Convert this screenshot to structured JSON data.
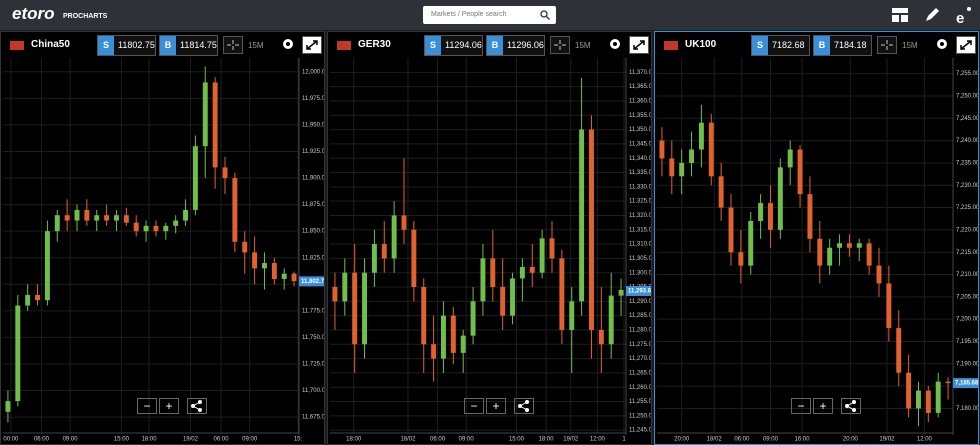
{
  "header": {
    "logo": "etoro",
    "logo_sub": "PROCHARTS",
    "search_placeholder": "Markets / People search"
  },
  "panels": [
    {
      "type": "candlestick",
      "name": "China50",
      "sell_label": "S",
      "sell": 11802.75,
      "buy_label": "B",
      "buy": 11814.75,
      "timeframe": "15M",
      "ylim": [
        11660,
        12013
      ],
      "xlim": [
        0,
        30
      ],
      "yticks": [
        {
          "value": 11675,
          "label": "11,675.00"
        },
        {
          "value": 11700,
          "label": "11,700.00"
        },
        {
          "value": 11725,
          "label": "11,725.00"
        },
        {
          "value": 11750,
          "label": "11,750.00"
        },
        {
          "value": 11775,
          "label": "11,775.00"
        },
        {
          "value": 11800,
          "label": "11,800.00"
        },
        {
          "value": 11825,
          "label": "11,825.00"
        },
        {
          "value": 11850,
          "label": "11,850.00"
        },
        {
          "value": 11875,
          "label": "11,875.00"
        },
        {
          "value": 11900,
          "label": "11,900.00"
        },
        {
          "value": 11925,
          "label": "11,925.00"
        },
        {
          "value": 11950,
          "label": "11,950.00"
        },
        {
          "value": 11975,
          "label": "11,975.00"
        },
        {
          "value": 12000,
          "label": "12,000.00"
        }
      ],
      "xticks": [
        {
          "value": 0.8,
          "label": "00:00"
        },
        {
          "value": 3.9,
          "label": "06:00"
        },
        {
          "value": 6.8,
          "label": "09:00"
        },
        {
          "value": 12,
          "label": "15:00"
        },
        {
          "value": 14.8,
          "label": "18:00"
        },
        {
          "value": 19,
          "label": "19/02"
        },
        {
          "value": 22.1,
          "label": "06:00"
        },
        {
          "value": 25,
          "label": "09:00"
        },
        {
          "value": 29.9,
          "label": "15:"
        }
      ],
      "price": {
        "value": 11802.75,
        "label": "11,802.75"
      },
      "candles": [
        [
          11680,
          11700,
          11670,
          11690
        ],
        [
          11690,
          11790,
          11685,
          11780
        ],
        [
          11780,
          11800,
          11775,
          11790
        ],
        [
          11790,
          11800,
          11780,
          11785
        ],
        [
          11785,
          11860,
          11780,
          11850
        ],
        [
          11850,
          11870,
          11840,
          11865
        ],
        [
          11865,
          11880,
          11850,
          11860
        ],
        [
          11860,
          11875,
          11850,
          11870
        ],
        [
          11870,
          11880,
          11855,
          11860
        ],
        [
          11860,
          11870,
          11850,
          11865
        ],
        [
          11865,
          11875,
          11855,
          11860
        ],
        [
          11860,
          11870,
          11850,
          11865
        ],
        [
          11865,
          11872,
          11855,
          11858
        ],
        [
          11858,
          11865,
          11845,
          11850
        ],
        [
          11850,
          11860,
          11840,
          11855
        ],
        [
          11855,
          11860,
          11845,
          11850
        ],
        [
          11850,
          11858,
          11842,
          11855
        ],
        [
          11855,
          11865,
          11848,
          11860
        ],
        [
          11860,
          11880,
          11855,
          11870
        ],
        [
          11870,
          11940,
          11865,
          11930
        ],
        [
          11930,
          12005,
          11900,
          11990
        ],
        [
          11990,
          11995,
          11890,
          11910
        ],
        [
          11910,
          11920,
          11885,
          11900
        ],
        [
          11900,
          11905,
          11830,
          11840
        ],
        [
          11840,
          11850,
          11810,
          11830
        ],
        [
          11830,
          11845,
          11800,
          11815
        ],
        [
          11815,
          11830,
          11795,
          11820
        ],
        [
          11820,
          11825,
          11800,
          11805
        ],
        [
          11805,
          11815,
          11795,
          11810
        ],
        [
          11810,
          11812,
          11798,
          11803
        ]
      ]
    },
    {
      "type": "candlestick",
      "name": "GER30",
      "sell_label": "S",
      "sell": 11294.06,
      "buy_label": "B",
      "buy": 11296.06,
      "timeframe": "15M",
      "ylim": [
        11244,
        11375
      ],
      "xlim": [
        0,
        30
      ],
      "yticks": [
        {
          "value": 11245,
          "label": "11,245.00"
        },
        {
          "value": 11250,
          "label": "11,250.00"
        },
        {
          "value": 11255,
          "label": "11,255.00"
        },
        {
          "value": 11260,
          "label": "11,260.00"
        },
        {
          "value": 11265,
          "label": "11,265.00"
        },
        {
          "value": 11270,
          "label": "11,270.00"
        },
        {
          "value": 11275,
          "label": "11,275.00"
        },
        {
          "value": 11280,
          "label": "11,280.00"
        },
        {
          "value": 11285,
          "label": "11,285.00"
        },
        {
          "value": 11290,
          "label": "11,290.00"
        },
        {
          "value": 11295,
          "label": "11,295.00"
        },
        {
          "value": 11300,
          "label": "11,300.00"
        },
        {
          "value": 11305,
          "label": "11,305.00"
        },
        {
          "value": 11310,
          "label": "11,310.00"
        },
        {
          "value": 11315,
          "label": "11,315.00"
        },
        {
          "value": 11320,
          "label": "11,320.00"
        },
        {
          "value": 11325,
          "label": "11,325.00"
        },
        {
          "value": 11330,
          "label": "11,330.00"
        },
        {
          "value": 11335,
          "label": "11,335.00"
        },
        {
          "value": 11340,
          "label": "11,340.00"
        },
        {
          "value": 11345,
          "label": "11,345.00"
        },
        {
          "value": 11350,
          "label": "11,350.00"
        },
        {
          "value": 11355,
          "label": "11,355.00"
        },
        {
          "value": 11360,
          "label": "11,360.00"
        },
        {
          "value": 11365,
          "label": "11,365.00"
        },
        {
          "value": 11370,
          "label": "11,370.00"
        }
      ],
      "xticks": [
        {
          "value": 2.4,
          "label": "18:00"
        },
        {
          "value": 7.9,
          "label": "18/02"
        },
        {
          "value": 10.9,
          "label": "06:00"
        },
        {
          "value": 13.8,
          "label": "09:00"
        },
        {
          "value": 18.9,
          "label": "15:00"
        },
        {
          "value": 21.9,
          "label": "18:00"
        },
        {
          "value": 24.4,
          "label": "19/02"
        },
        {
          "value": 27.1,
          "label": "12:00"
        },
        {
          "value": 29.8,
          "label": "1"
        }
      ],
      "price": {
        "value": 11293.6,
        "label": "11,293.60"
      },
      "candles": [
        [
          11295,
          11300,
          11280,
          11290
        ],
        [
          11290,
          11305,
          11285,
          11300
        ],
        [
          11300,
          11310,
          11265,
          11275
        ],
        [
          11275,
          11305,
          11270,
          11300
        ],
        [
          11300,
          11315,
          11295,
          11310
        ],
        [
          11310,
          11318,
          11300,
          11305
        ],
        [
          11305,
          11325,
          11300,
          11320
        ],
        [
          11320,
          11340,
          11310,
          11315
        ],
        [
          11315,
          11318,
          11290,
          11295
        ],
        [
          11295,
          11298,
          11265,
          11275
        ],
        [
          11275,
          11285,
          11262,
          11270
        ],
        [
          11270,
          11290,
          11265,
          11285
        ],
        [
          11285,
          11288,
          11268,
          11272
        ],
        [
          11272,
          11280,
          11265,
          11278
        ],
        [
          11278,
          11295,
          11275,
          11290
        ],
        [
          11290,
          11310,
          11285,
          11305
        ],
        [
          11305,
          11315,
          11290,
          11295
        ],
        [
          11295,
          11305,
          11280,
          11285
        ],
        [
          11285,
          11300,
          11282,
          11298
        ],
        [
          11298,
          11305,
          11290,
          11302
        ],
        [
          11302,
          11310,
          11295,
          11300
        ],
        [
          11300,
          11315,
          11298,
          11312
        ],
        [
          11312,
          11318,
          11300,
          11305
        ],
        [
          11305,
          11308,
          11275,
          11280
        ],
        [
          11280,
          11295,
          11265,
          11290
        ],
        [
          11290,
          11368,
          11285,
          11350
        ],
        [
          11350,
          11355,
          11270,
          11280
        ],
        [
          11280,
          11295,
          11265,
          11275
        ],
        [
          11275,
          11300,
          11270,
          11292
        ],
        [
          11292,
          11298,
          11285,
          11294
        ]
      ]
    },
    {
      "type": "candlestick",
      "name": "UK100",
      "sell_label": "S",
      "sell": 7182.68,
      "buy_label": "B",
      "buy": 7184.18,
      "timeframe": "15M",
      "ylim": [
        7174.5,
        7258.5
      ],
      "xlim": [
        0,
        30
      ],
      "yticks": [
        {
          "value": 7180,
          "label": "7,180.00"
        },
        {
          "value": 7185,
          "label": "7,185.00"
        },
        {
          "value": 7190,
          "label": "7,190.00"
        },
        {
          "value": 7195,
          "label": "7,195.00"
        },
        {
          "value": 7200,
          "label": "7,200.00"
        },
        {
          "value": 7205,
          "label": "7,205.00"
        },
        {
          "value": 7210,
          "label": "7,210.00"
        },
        {
          "value": 7215,
          "label": "7,215.00"
        },
        {
          "value": 7220,
          "label": "7,220.00"
        },
        {
          "value": 7225,
          "label": "7,225.00"
        },
        {
          "value": 7230,
          "label": "7,230.00"
        },
        {
          "value": 7235,
          "label": "7,235.00"
        },
        {
          "value": 7240,
          "label": "7,240.00"
        },
        {
          "value": 7245,
          "label": "7,245.00"
        },
        {
          "value": 7250,
          "label": "7,250.00"
        },
        {
          "value": 7255,
          "label": "7,255.00"
        }
      ],
      "xticks": [
        {
          "value": 2.5,
          "label": "20:00"
        },
        {
          "value": 5.8,
          "label": "18/02"
        },
        {
          "value": 8.6,
          "label": "06:00"
        },
        {
          "value": 11.5,
          "label": "09:00"
        },
        {
          "value": 14.7,
          "label": "16:00"
        },
        {
          "value": 19.6,
          "label": "20:00"
        },
        {
          "value": 23.3,
          "label": "19/02"
        },
        {
          "value": 27.1,
          "label": "12:00"
        }
      ],
      "price": {
        "value": 7185.68,
        "label": "7,185.68"
      },
      "candles": [
        [
          7240,
          7243,
          7232,
          7236
        ],
        [
          7236,
          7240,
          7228,
          7232
        ],
        [
          7232,
          7238,
          7228,
          7235
        ],
        [
          7235,
          7242,
          7232,
          7238
        ],
        [
          7238,
          7248,
          7234,
          7244
        ],
        [
          7244,
          7246,
          7230,
          7232
        ],
        [
          7232,
          7235,
          7222,
          7225
        ],
        [
          7225,
          7228,
          7212,
          7215
        ],
        [
          7215,
          7220,
          7208,
          7212
        ],
        [
          7212,
          7224,
          7210,
          7222
        ],
        [
          7222,
          7228,
          7218,
          7226
        ],
        [
          7226,
          7230,
          7216,
          7220
        ],
        [
          7220,
          7236,
          7218,
          7234
        ],
        [
          7234,
          7240,
          7230,
          7238
        ],
        [
          7238,
          7239,
          7225,
          7228
        ],
        [
          7228,
          7232,
          7215,
          7218
        ],
        [
          7218,
          7222,
          7208,
          7212
        ],
        [
          7212,
          7218,
          7210,
          7216
        ],
        [
          7216,
          7219,
          7212,
          7217
        ],
        [
          7217,
          7219,
          7214,
          7216
        ],
        [
          7216,
          7218,
          7213,
          7217
        ],
        [
          7217,
          7218,
          7210,
          7212
        ],
        [
          7212,
          7216,
          7205,
          7208
        ],
        [
          7208,
          7212,
          7195,
          7198
        ],
        [
          7198,
          7202,
          7185,
          7188
        ],
        [
          7188,
          7192,
          7178,
          7180
        ],
        [
          7180,
          7186,
          7176,
          7184
        ],
        [
          7184,
          7185,
          7177,
          7179
        ],
        [
          7179,
          7188,
          7178,
          7186
        ],
        [
          7186,
          7187,
          7182,
          7185.68
        ]
      ]
    }
  ]
}
